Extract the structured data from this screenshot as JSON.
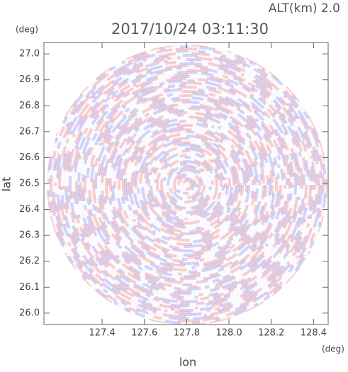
{
  "chart_data": {
    "type": "image",
    "title": "2017/10/24 03:11:30",
    "subtitle": "ALT(km) 2.0",
    "x_label": "lon",
    "y_label": "lat",
    "x_unit": "(deg)",
    "y_unit": "(deg)",
    "xlim": [
      127.125,
      128.469
    ],
    "ylim": [
      25.956,
      27.044
    ],
    "xticks": [
      127.4,
      127.6,
      127.8,
      {
        "value": 128,
        "label": "128.0"
      },
      128.2,
      128.4
    ],
    "yticks": [
      {
        "value": 26,
        "label": "26.0"
      },
      26.1,
      26.2,
      26.3,
      26.4,
      26.5,
      26.6,
      26.7,
      26.8,
      26.9,
      {
        "value": 27,
        "label": "27.0"
      }
    ]
  }
}
